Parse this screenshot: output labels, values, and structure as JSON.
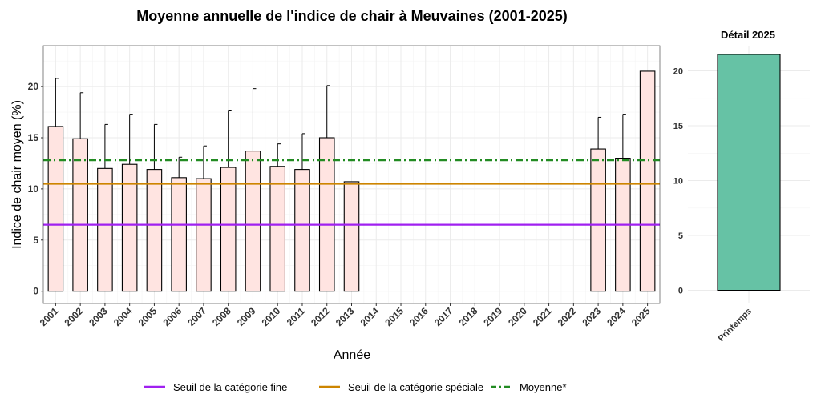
{
  "chart_data": [
    {
      "type": "bar",
      "title": "Moyenne annuelle de l'indice de chair à Meuvaines (2001-2025)",
      "xlabel": "Année",
      "ylabel": "Indice de chair moyen (%)",
      "ylim": [
        -1.2,
        24
      ],
      "yticks": [
        0,
        5,
        10,
        15,
        20
      ],
      "grid": true,
      "categories": [
        "2001",
        "2002",
        "2003",
        "2004",
        "2005",
        "2006",
        "2007",
        "2008",
        "2009",
        "2010",
        "2011",
        "2012",
        "2013",
        "2014",
        "2015",
        "2016",
        "2017",
        "2018",
        "2019",
        "2020",
        "2021",
        "2022",
        "2023",
        "2024",
        "2025"
      ],
      "values": [
        16.1,
        14.9,
        12.0,
        12.4,
        11.9,
        11.1,
        11.0,
        12.1,
        13.7,
        12.2,
        11.9,
        15.0,
        10.7,
        null,
        null,
        null,
        null,
        null,
        null,
        null,
        null,
        null,
        13.9,
        13.0,
        21.5
      ],
      "error_upper": [
        20.8,
        19.4,
        16.3,
        17.3,
        16.3,
        13.1,
        14.2,
        17.7,
        19.8,
        14.4,
        15.4,
        20.1,
        null,
        null,
        null,
        null,
        null,
        null,
        null,
        null,
        null,
        null,
        17.0,
        17.3,
        null
      ],
      "bar_color": "#ffe4e1",
      "reference_lines": [
        {
          "name": "Seuil de la catégorie fine",
          "value": 6.5,
          "color": "#a020f0",
          "style": "solid"
        },
        {
          "name": "Seuil de la catégorie spéciale",
          "value": 10.5,
          "color": "#cd8500",
          "style": "solid"
        },
        {
          "name": "Moyenne*",
          "value": 12.8,
          "color": "#228b22",
          "style": "dashdot"
        }
      ],
      "legend_position": "bottom"
    },
    {
      "type": "bar",
      "title": "Détail 2025",
      "categories": [
        "Printemps"
      ],
      "values": [
        21.5
      ],
      "ylim": [
        -1.2,
        22.3
      ],
      "yticks": [
        0,
        5,
        10,
        15,
        20
      ],
      "bar_color": "#66c2a5",
      "grid": true
    }
  ]
}
